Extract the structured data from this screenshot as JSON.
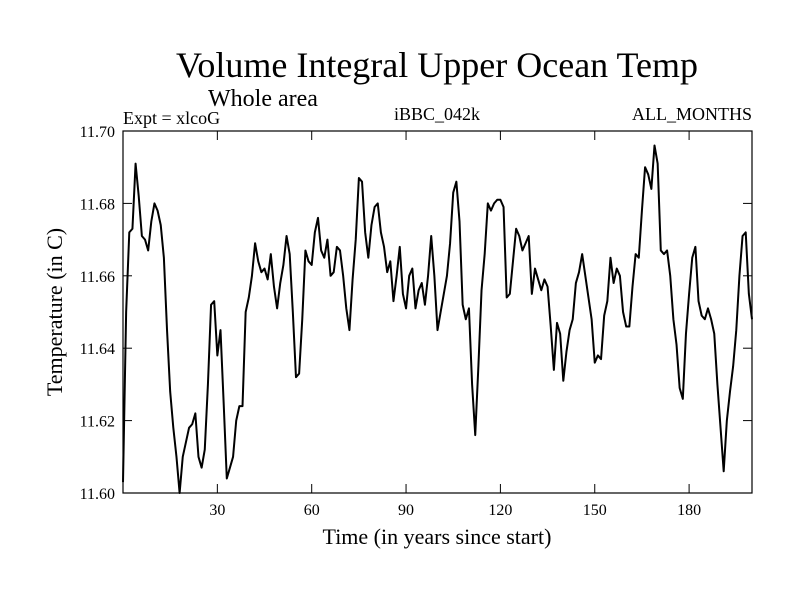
{
  "chart_data": {
    "type": "line",
    "title": "Volume Integral Upper Ocean Temp",
    "subtitle": "Whole area",
    "header_left": "Expt = xlcoG",
    "header_center": "iBBC_042k",
    "header_right": "ALL_MONTHS",
    "xlabel": "Time (in years since start)",
    "ylabel": "Temperature (in C)",
    "xlim": [
      0,
      200
    ],
    "ylim": [
      11.6,
      11.7
    ],
    "x_ticks": [
      30,
      60,
      90,
      120,
      150,
      180
    ],
    "y_ticks": [
      "11.60",
      "11.62",
      "11.64",
      "11.66",
      "11.68",
      "11.70"
    ],
    "line_color": "#000000",
    "series": [
      {
        "name": "Volume integral upper ocean temperature",
        "x": [
          0,
          1,
          2,
          3,
          4,
          5,
          6,
          7,
          8,
          9,
          10,
          11,
          12,
          13,
          14,
          15,
          16,
          17,
          18,
          19,
          20,
          21,
          22,
          23,
          24,
          25,
          26,
          27,
          28,
          29,
          30,
          31,
          32,
          33,
          34,
          35,
          36,
          37,
          38,
          39,
          40,
          41,
          42,
          43,
          44,
          45,
          46,
          47,
          48,
          49,
          50,
          51,
          52,
          53,
          54,
          55,
          56,
          57,
          58,
          59,
          60,
          61,
          62,
          63,
          64,
          65,
          66,
          67,
          68,
          69,
          70,
          71,
          72,
          73,
          74,
          75,
          76,
          77,
          78,
          79,
          80,
          81,
          82,
          83,
          84,
          85,
          86,
          87,
          88,
          89,
          90,
          91,
          92,
          93,
          94,
          95,
          96,
          97,
          98,
          99,
          100,
          101,
          102,
          103,
          104,
          105,
          106,
          107,
          108,
          109,
          110,
          111,
          112,
          113,
          114,
          115,
          116,
          117,
          118,
          119,
          120,
          121,
          122,
          123,
          124,
          125,
          126,
          127,
          128,
          129,
          130,
          131,
          132,
          133,
          134,
          135,
          136,
          137,
          138,
          139,
          140,
          141,
          142,
          143,
          144,
          145,
          146,
          147,
          148,
          149,
          150,
          151,
          152,
          153,
          154,
          155,
          156,
          157,
          158,
          159,
          160,
          161,
          162,
          163,
          164,
          165,
          166,
          167,
          168,
          169,
          170,
          171,
          172,
          173,
          174,
          175,
          176,
          177,
          178,
          179,
          180,
          181,
          182,
          183,
          184,
          185,
          186,
          187,
          188,
          189,
          190,
          191,
          192,
          193,
          194,
          195,
          196,
          197,
          198,
          199,
          200
        ],
        "values": [
          11.603,
          11.65,
          11.672,
          11.673,
          11.691,
          11.682,
          11.671,
          11.67,
          11.667,
          11.675,
          11.68,
          11.678,
          11.674,
          11.665,
          11.645,
          11.628,
          11.618,
          11.61,
          11.6,
          11.61,
          11.614,
          11.618,
          11.619,
          11.622,
          11.61,
          11.607,
          11.612,
          11.63,
          11.652,
          11.653,
          11.638,
          11.645,
          11.625,
          11.604,
          11.607,
          11.61,
          11.62,
          11.624,
          11.624,
          11.65,
          11.654,
          11.66,
          11.669,
          11.664,
          11.661,
          11.662,
          11.659,
          11.666,
          11.657,
          11.651,
          11.658,
          11.663,
          11.671,
          11.666,
          11.65,
          11.632,
          11.633,
          11.648,
          11.667,
          11.664,
          11.663,
          11.672,
          11.676,
          11.667,
          11.665,
          11.67,
          11.66,
          11.661,
          11.668,
          11.667,
          11.66,
          11.651,
          11.645,
          11.659,
          11.67,
          11.687,
          11.686,
          11.672,
          11.665,
          11.674,
          11.679,
          11.68,
          11.672,
          11.668,
          11.661,
          11.664,
          11.653,
          11.66,
          11.668,
          11.655,
          11.651,
          11.66,
          11.662,
          11.651,
          11.656,
          11.658,
          11.652,
          11.66,
          11.671,
          11.66,
          11.645,
          11.65,
          11.655,
          11.66,
          11.669,
          11.683,
          11.686,
          11.675,
          11.652,
          11.648,
          11.651,
          11.63,
          11.616,
          11.635,
          11.656,
          11.666,
          11.68,
          11.678,
          11.68,
          11.681,
          11.681,
          11.679,
          11.654,
          11.655,
          11.664,
          11.673,
          11.671,
          11.667,
          11.669,
          11.671,
          11.655,
          11.662,
          11.659,
          11.656,
          11.659,
          11.657,
          11.646,
          11.634,
          11.647,
          11.644,
          11.631,
          11.639,
          11.645,
          11.648,
          11.658,
          11.661,
          11.666,
          11.66,
          11.654,
          11.648,
          11.636,
          11.638,
          11.637,
          11.649,
          11.653,
          11.665,
          11.658,
          11.662,
          11.66,
          11.65,
          11.646,
          11.646,
          11.657,
          11.666,
          11.665,
          11.678,
          11.69,
          11.688,
          11.684,
          11.696,
          11.691,
          11.667,
          11.666,
          11.667,
          11.66,
          11.648,
          11.641,
          11.629,
          11.626,
          11.644,
          11.655,
          11.665,
          11.668,
          11.653,
          11.649,
          11.648,
          11.651,
          11.648,
          11.644,
          11.63,
          11.618,
          11.606,
          11.62,
          11.628,
          11.635,
          11.645,
          11.66,
          11.671,
          11.672,
          11.655,
          11.648
        ]
      }
    ]
  }
}
